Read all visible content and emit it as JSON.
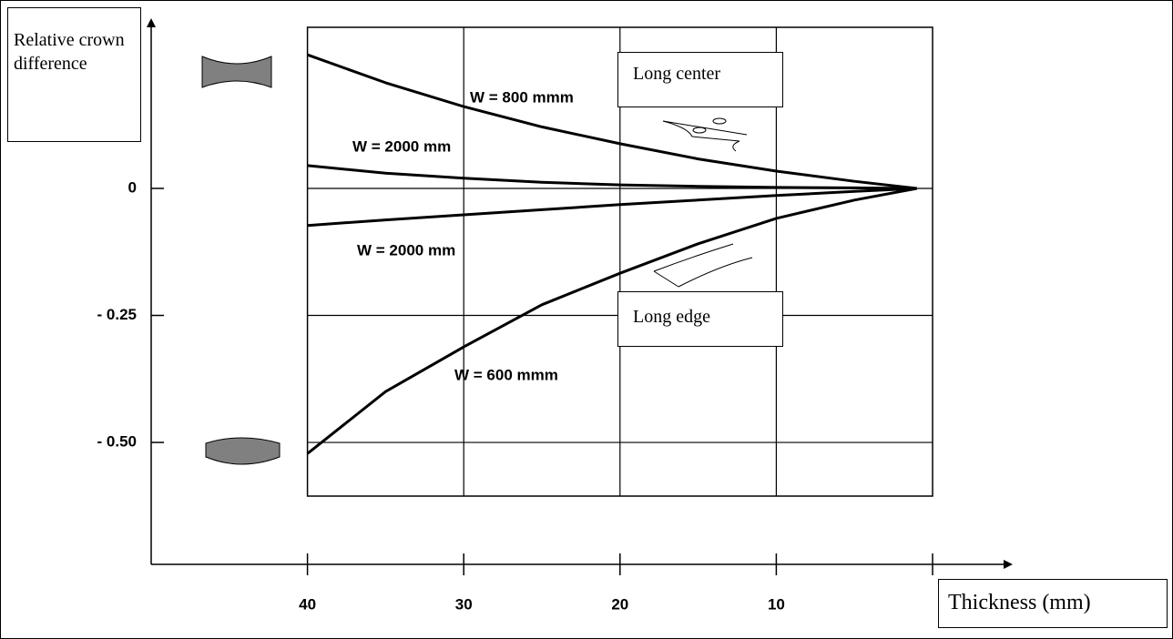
{
  "chart_data": {
    "type": "line",
    "ylabel": "Relative crown difference",
    "xlabel": "Thickness (mm)",
    "annotations": [
      "Long center",
      "Long edge"
    ],
    "x": [
      40,
      35,
      30,
      25,
      20,
      15,
      10,
      5,
      1
    ],
    "series": [
      {
        "name": "W = 800 mmm",
        "color": "#000000",
        "values": [
          0.263,
          0.208,
          0.161,
          0.121,
          0.088,
          0.058,
          0.034,
          0.014,
          0
        ]
      },
      {
        "name": "W = 2000 mm",
        "color": "#000000",
        "values": [
          0.045,
          0.03,
          0.02,
          0.012,
          0.007,
          0.004,
          0.002,
          0.001,
          0
        ]
      },
      {
        "name": "W = 2000 mm",
        "color": "#000000",
        "values": [
          -0.073,
          -0.062,
          -0.052,
          -0.042,
          -0.032,
          -0.023,
          -0.014,
          -0.006,
          0
        ]
      },
      {
        "name": "W = 600 mmm",
        "color": "#000000",
        "values": [
          -0.522,
          -0.4,
          -0.312,
          -0.229,
          -0.167,
          -0.109,
          -0.059,
          -0.023,
          0
        ]
      }
    ],
    "xlim": [
      50,
      0
    ],
    "xticks": [
      40,
      30,
      20,
      10
    ],
    "ylim": [
      -0.74,
      0.335
    ],
    "yticks": [
      {
        "value": 0,
        "label": "0"
      },
      {
        "value": -0.25,
        "label": "- 0.25"
      },
      {
        "value": -0.5,
        "label": "- 0.50"
      }
    ],
    "grid": true
  }
}
